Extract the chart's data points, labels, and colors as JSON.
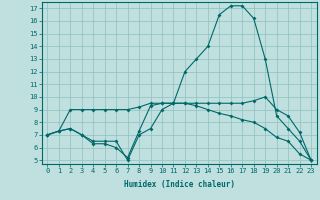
{
  "xlabel": "Humidex (Indice chaleur)",
  "xlim": [
    -0.5,
    23.5
  ],
  "ylim": [
    4.7,
    17.5
  ],
  "yticks": [
    5,
    6,
    7,
    8,
    9,
    10,
    11,
    12,
    13,
    14,
    15,
    16,
    17
  ],
  "xticks": [
    0,
    1,
    2,
    3,
    4,
    5,
    6,
    7,
    8,
    9,
    10,
    11,
    12,
    13,
    14,
    15,
    16,
    17,
    18,
    19,
    20,
    21,
    22,
    23
  ],
  "background_color": "#c0e0e0",
  "line_color": "#006868",
  "grid_color": "#90c0c0",
  "lines": [
    {
      "x": [
        0,
        1,
        2,
        3,
        4,
        5,
        6,
        7,
        8,
        9,
        10,
        11,
        12,
        13,
        14,
        15,
        16,
        17,
        18,
        19,
        20,
        21,
        22,
        23
      ],
      "y": [
        7.0,
        7.3,
        9.0,
        9.0,
        9.0,
        9.0,
        9.0,
        9.0,
        9.2,
        9.5,
        9.5,
        9.5,
        9.5,
        9.5,
        9.5,
        9.5,
        9.5,
        9.5,
        9.7,
        10.0,
        9.0,
        8.5,
        7.2,
        5.0
      ]
    },
    {
      "x": [
        0,
        1,
        2,
        3,
        4,
        5,
        6,
        7,
        8,
        9,
        10,
        11,
        12,
        13,
        14,
        15,
        16,
        17,
        18,
        19,
        20,
        21,
        22,
        23
      ],
      "y": [
        7.0,
        7.3,
        7.5,
        7.0,
        6.5,
        6.5,
        6.5,
        5.0,
        7.0,
        7.5,
        9.0,
        9.5,
        12.0,
        13.0,
        14.0,
        16.5,
        17.2,
        17.2,
        16.2,
        13.0,
        8.5,
        7.5,
        6.5,
        5.0
      ]
    },
    {
      "x": [
        0,
        1,
        2,
        3,
        4,
        5,
        6,
        7,
        8,
        9,
        10,
        11,
        12,
        13,
        14,
        15,
        16,
        17,
        18,
        19,
        20,
        21,
        22,
        23
      ],
      "y": [
        7.0,
        7.3,
        7.5,
        7.0,
        6.3,
        6.3,
        6.0,
        5.2,
        7.3,
        9.3,
        9.5,
        9.5,
        9.5,
        9.3,
        9.0,
        8.7,
        8.5,
        8.2,
        8.0,
        7.5,
        6.8,
        6.5,
        5.5,
        5.0
      ]
    }
  ]
}
